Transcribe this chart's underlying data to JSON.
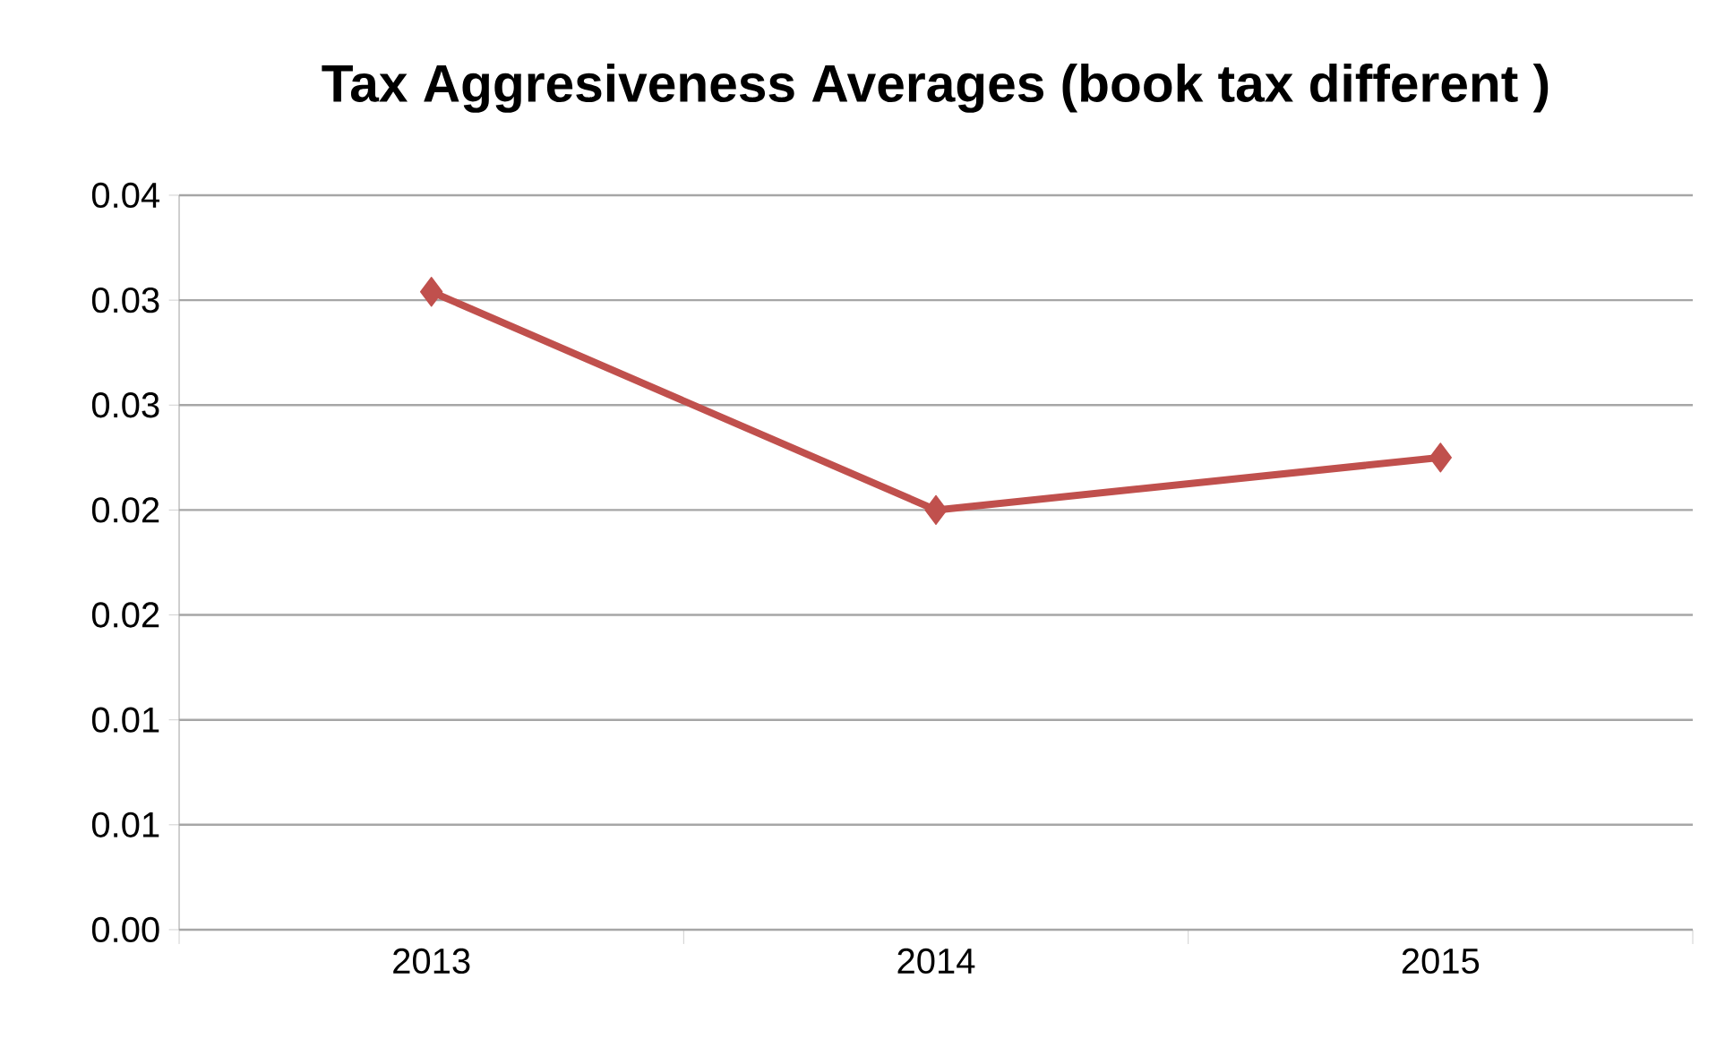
{
  "chart_data": {
    "type": "line",
    "title": "Tax Aggresiveness Averages (book tax different )",
    "categories": [
      "2013",
      "2014",
      "2015"
    ],
    "series": [
      {
        "color": "#c0504d",
        "values": [
          0.0304,
          0.02,
          0.0225
        ]
      }
    ],
    "ylim": [
      0,
      0.035
    ],
    "yticks": [
      {
        "value": 0,
        "label": "0.00"
      },
      {
        "value": 0.005,
        "label": "0.01"
      },
      {
        "value": 0.01,
        "label": "0.01"
      },
      {
        "value": 0.015,
        "label": "0.02"
      },
      {
        "value": 0.02,
        "label": "0.02"
      },
      {
        "value": 0.025,
        "label": "0.03"
      },
      {
        "value": 0.03,
        "label": "0.03"
      },
      {
        "value": 0.035,
        "label": "0.04"
      }
    ],
    "grid": "y",
    "marker": "diamond",
    "line_style": "solid"
  }
}
